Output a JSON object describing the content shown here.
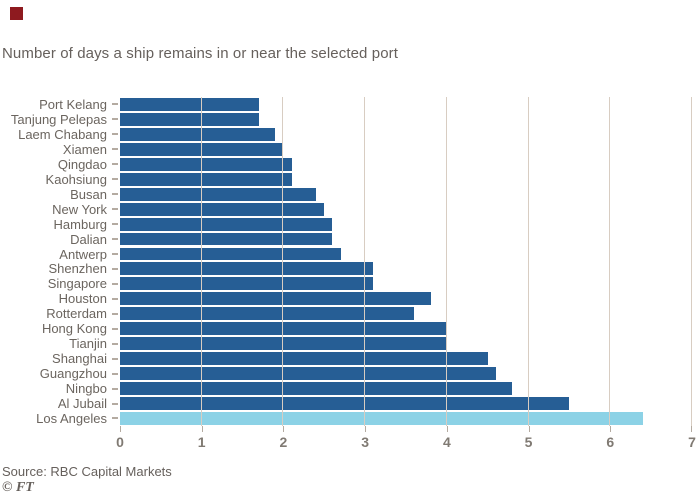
{
  "subtitle": "Number of days a ship remains in or near the selected port",
  "branding": {
    "source": "Source: RBC Capital Markets",
    "publisher_mark": "© FT",
    "accent_square_color": "#8e1a1f"
  },
  "chart_data": {
    "type": "bar",
    "orientation": "horizontal",
    "title": "",
    "subtitle": "Number of days a ship remains in or near the selected port",
    "xlabel": "",
    "ylabel": "",
    "xlim": [
      0,
      7
    ],
    "x_ticks": [
      0,
      1,
      2,
      3,
      4,
      5,
      6,
      7
    ],
    "grid": "vertical",
    "legend": "none",
    "categories": [
      "Port Kelang",
      "Tanjung Pelepas",
      "Laem Chabang",
      "Xiamen",
      "Qingdao",
      "Kaohsiung",
      "Busan",
      "New York",
      "Hamburg",
      "Dalian",
      "Antwerp",
      "Shenzhen",
      "Singapore",
      "Houston",
      "Rotterdam",
      "Hong Kong",
      "Tianjin",
      "Shanghai",
      "Guangzhou",
      "Ningbo",
      "Al Jubail",
      "Los Angeles"
    ],
    "values": [
      1.7,
      1.7,
      1.9,
      2.0,
      2.1,
      2.1,
      2.4,
      2.5,
      2.6,
      2.6,
      2.7,
      3.1,
      3.1,
      3.8,
      3.6,
      4.0,
      4.0,
      4.5,
      4.6,
      4.8,
      5.5,
      6.4
    ],
    "highlight_category": "Los Angeles",
    "colors": {
      "bar": "#265e95",
      "highlight_bar": "#8cd2e6",
      "gridline": "#d8cdc2",
      "text": "#66605c",
      "background": "#ffffff"
    }
  }
}
